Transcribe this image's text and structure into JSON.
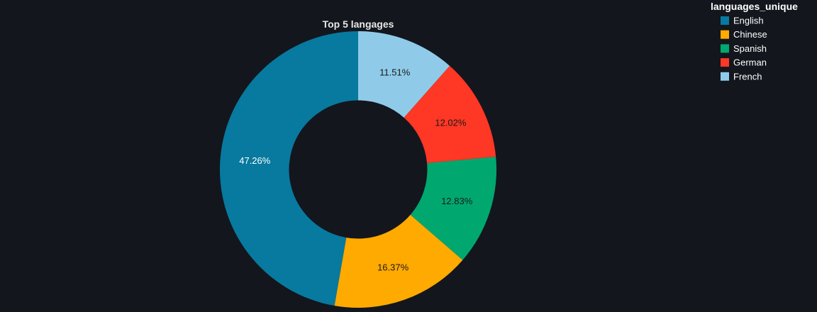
{
  "chart_data": {
    "type": "pie",
    "title": "Top 5 langages",
    "hole": 0.5,
    "direction": "counterclockwise",
    "legend_title": "languages_unique",
    "legend_position": "top-right",
    "categories": [
      "English",
      "Chinese",
      "Spanish",
      "German",
      "French"
    ],
    "values": [
      47.26,
      16.37,
      12.83,
      12.02,
      11.51
    ],
    "labels": [
      "47.26%",
      "16.37%",
      "12.83%",
      "12.02%",
      "11.51%"
    ],
    "colors": [
      "#08799f",
      "#ffaa00",
      "#00a86f",
      "#ff3725",
      "#8fcbe8"
    ],
    "label_colors": [
      "#ffffff",
      "#1a1a1a",
      "#1a1a1a",
      "#1a1a1a",
      "#1a1a1a"
    ]
  }
}
